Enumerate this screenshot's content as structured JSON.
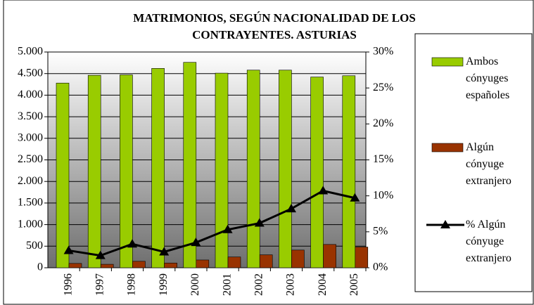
{
  "chart_data": {
    "type": "bar",
    "title": "MATRIMONIOS, SEGÚN NACIONALIDAD DE LOS CONTRAYENTES. ASTURIAS",
    "categories": [
      "1996",
      "1997",
      "1998",
      "1999",
      "2000",
      "2001",
      "2002",
      "2003",
      "2004",
      "2005"
    ],
    "series": [
      {
        "name": "Ambos cónyuges españoles",
        "color": "#99cc00",
        "type": "bar",
        "values": [
          4280,
          4460,
          4470,
          4620,
          4760,
          4510,
          4580,
          4580,
          4420,
          4450
        ]
      },
      {
        "name": "Algún cónyuge extranjero",
        "color": "#993300",
        "type": "bar",
        "values": [
          100,
          80,
          150,
          110,
          180,
          250,
          300,
          410,
          540,
          480
        ]
      },
      {
        "name": "% Algún cónyuge extranjero",
        "color": "#000000",
        "type": "line",
        "axis": "y2",
        "values": [
          2.4,
          1.7,
          3.3,
          2.2,
          3.5,
          5.3,
          6.2,
          8.2,
          10.7,
          9.7
        ]
      }
    ],
    "ylim": [
      0,
      5000
    ],
    "yticks": [
      0,
      500,
      {
        "value": 1000,
        "label": "1.000"
      },
      {
        "value": 1500,
        "label": "1.500"
      },
      {
        "value": 2000,
        "label": "2.000"
      },
      {
        "value": 2500,
        "label": "2.500"
      },
      {
        "value": 3000,
        "label": "3.000"
      },
      {
        "value": 3500,
        "label": "3.500"
      },
      {
        "value": 4000,
        "label": "4.000"
      },
      {
        "value": 4500,
        "label": "4.500"
      },
      {
        "value": 5000,
        "label": "5.000"
      }
    ],
    "y2lim": [
      0,
      30
    ],
    "y2ticks": [
      {
        "value": 0,
        "label": "0%"
      },
      {
        "value": 5,
        "label": "5%"
      },
      {
        "value": 10,
        "label": "10%"
      },
      {
        "value": 15,
        "label": "15%"
      },
      {
        "value": 20,
        "label": "20%"
      },
      {
        "value": 25,
        "label": "25%"
      },
      {
        "value": 30,
        "label": "30%"
      }
    ],
    "grid": true,
    "legend": "right"
  }
}
